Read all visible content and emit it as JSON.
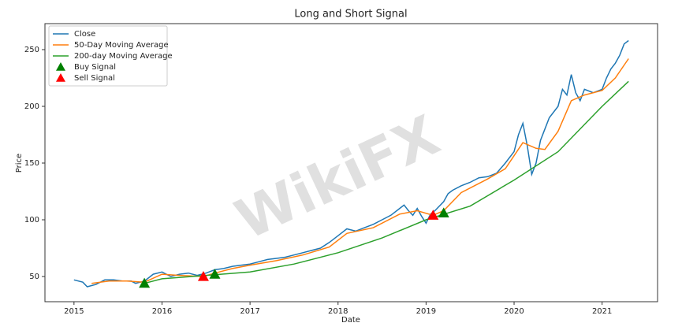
{
  "chart_data": {
    "type": "line",
    "title": "Long and Short Signal",
    "x_label": "Date",
    "y_label": "Price",
    "watermark": "WikiFX",
    "xlim": [
      2014.67,
      2021.63
    ],
    "xticks": [
      2015,
      2016,
      2017,
      2018,
      2019,
      2020,
      2021
    ],
    "ylim": [
      27.8,
      272.9
    ],
    "yticks": [
      50,
      100,
      150,
      200,
      250
    ],
    "legend": "upper left",
    "series": [
      {
        "name": "Close",
        "color": "#1f77b4",
        "style": "line",
        "x": [
          2015.0,
          2015.1,
          2015.15,
          2015.25,
          2015.35,
          2015.45,
          2015.55,
          2015.65,
          2015.7,
          2015.8,
          2015.9,
          2016.0,
          2016.1,
          2016.2,
          2016.3,
          2016.4,
          2016.5,
          2016.6,
          2016.7,
          2016.8,
          2016.9,
          2017.0,
          2017.1,
          2017.2,
          2017.3,
          2017.4,
          2017.5,
          2017.6,
          2017.7,
          2017.8,
          2017.9,
          2018.0,
          2018.1,
          2018.2,
          2018.3,
          2018.4,
          2018.5,
          2018.6,
          2018.7,
          2018.75,
          2018.8,
          2018.85,
          2018.9,
          2018.95,
          2019.0,
          2019.05,
          2019.1,
          2019.2,
          2019.25,
          2019.3,
          2019.4,
          2019.5,
          2019.6,
          2019.7,
          2019.8,
          2019.9,
          2020.0,
          2020.05,
          2020.1,
          2020.15,
          2020.2,
          2020.25,
          2020.3,
          2020.35,
          2020.4,
          2020.5,
          2020.55,
          2020.6,
          2020.65,
          2020.7,
          2020.75,
          2020.8,
          2020.9,
          2021.0,
          2021.05,
          2021.1,
          2021.15,
          2021.2,
          2021.25,
          2021.3
        ],
        "values": [
          47,
          45,
          41,
          43,
          47,
          47,
          46,
          46,
          44,
          46,
          52,
          54,
          50,
          52,
          53,
          51,
          53,
          56,
          57,
          59,
          60,
          61,
          63,
          65,
          66,
          67,
          69,
          71,
          73,
          75,
          80,
          86,
          92,
          90,
          93,
          96,
          100,
          104,
          110,
          113,
          108,
          104,
          110,
          103,
          97,
          105,
          108,
          116,
          123,
          126,
          130,
          133,
          137,
          138,
          141,
          150,
          160,
          175,
          185,
          165,
          140,
          150,
          170,
          180,
          190,
          200,
          215,
          210,
          228,
          212,
          205,
          215,
          212,
          215,
          225,
          233,
          238,
          245,
          255,
          258
        ]
      },
      {
        "name": "50-Day Moving Average",
        "color": "#ff7f0e",
        "style": "line",
        "x": [
          2015.2,
          2015.4,
          2015.6,
          2015.8,
          2016.0,
          2016.2,
          2016.47,
          2016.6,
          2016.8,
          2017.0,
          2017.3,
          2017.6,
          2017.9,
          2018.1,
          2018.4,
          2018.7,
          2018.9,
          2019.08,
          2019.2,
          2019.4,
          2019.7,
          2019.9,
          2020.1,
          2020.25,
          2020.35,
          2020.5,
          2020.65,
          2020.8,
          2021.0,
          2021.15,
          2021.3
        ],
        "values": [
          44,
          46,
          46,
          45,
          52,
          51,
          50,
          53,
          57,
          60,
          64,
          69,
          76,
          88,
          93,
          105,
          108,
          104,
          108,
          124,
          136,
          145,
          168,
          163,
          162,
          178,
          205,
          210,
          214,
          225,
          242
        ]
      },
      {
        "name": "200-day Moving Average",
        "color": "#2ca02c",
        "style": "line",
        "x": [
          2015.8,
          2016.0,
          2016.5,
          2017.0,
          2017.5,
          2018.0,
          2018.5,
          2019.0,
          2019.5,
          2020.0,
          2020.5,
          2021.0,
          2021.3
        ],
        "values": [
          44,
          48,
          51,
          54,
          61,
          71,
          84,
          100,
          112,
          135,
          160,
          200,
          222
        ]
      },
      {
        "name": "Buy Signal",
        "color": "#008000",
        "style": "marker",
        "x": [
          2015.8,
          2016.6,
          2019.2
        ],
        "values": [
          44,
          52,
          106
        ]
      },
      {
        "name": "Sell Signal",
        "color": "#ff0000",
        "style": "marker",
        "x": [
          2016.47,
          2019.08
        ],
        "values": [
          50,
          104
        ]
      }
    ]
  }
}
